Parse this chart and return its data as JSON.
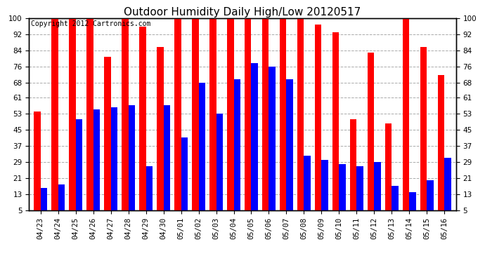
{
  "title": "Outdoor Humidity Daily High/Low 20120517",
  "copyright": "Copyright 2012 Cartronics.com",
  "categories": [
    "04/23",
    "04/24",
    "04/25",
    "04/26",
    "04/27",
    "04/28",
    "04/29",
    "04/30",
    "05/01",
    "05/02",
    "05/03",
    "05/04",
    "05/05",
    "05/06",
    "05/07",
    "05/08",
    "05/09",
    "05/10",
    "05/11",
    "05/12",
    "05/13",
    "05/14",
    "05/15",
    "05/16"
  ],
  "highs": [
    54,
    100,
    100,
    100,
    81,
    100,
    96,
    86,
    100,
    100,
    100,
    100,
    100,
    100,
    100,
    100,
    97,
    93,
    50,
    83,
    48,
    100,
    86,
    72
  ],
  "lows": [
    16,
    18,
    50,
    55,
    56,
    57,
    27,
    57,
    41,
    68,
    53,
    70,
    78,
    76,
    70,
    32,
    30,
    28,
    27,
    29,
    17,
    14,
    20,
    31
  ],
  "high_color": "#FF0000",
  "low_color": "#0000FF",
  "bg_color": "#FFFFFF",
  "plot_bg_color": "#FFFFFF",
  "grid_color": "#AAAAAA",
  "ymin": 5,
  "ymax": 100,
  "yticks": [
    5,
    13,
    21,
    29,
    37,
    45,
    53,
    61,
    68,
    76,
    84,
    92,
    100
  ],
  "title_fontsize": 11,
  "copyright_fontsize": 7,
  "tick_fontsize": 7.5,
  "bar_width": 0.38
}
